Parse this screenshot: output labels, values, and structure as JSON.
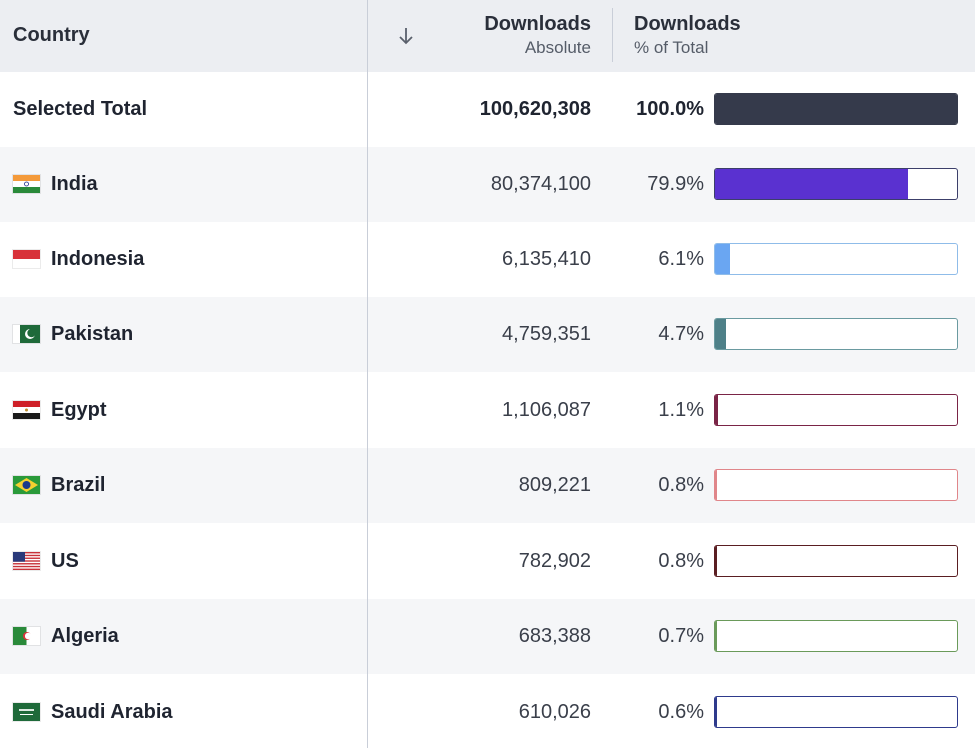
{
  "header": {
    "country_label": "Country",
    "sort_icon": "arrow-down-icon",
    "abs_title": "Downloads",
    "abs_sub": "Absolute",
    "pct_title": "Downloads",
    "pct_sub": "% of Total"
  },
  "total": {
    "label": "Selected Total",
    "absolute": "100,620,308",
    "percent": "100.0%",
    "share": 1.0,
    "color": "#353a4b"
  },
  "rows": [
    {
      "country": "India",
      "flag": "india-flag-icon",
      "absolute": "80,374,100",
      "percent": "79.9%",
      "share": 0.799,
      "color": "#5a31d0",
      "border": "#3c3f6a"
    },
    {
      "country": "Indonesia",
      "flag": "indonesia-flag-icon",
      "absolute": "6,135,410",
      "percent": "6.1%",
      "share": 0.061,
      "color": "#6aa6f2",
      "border": "#8fbce9"
    },
    {
      "country": "Pakistan",
      "flag": "pakistan-flag-icon",
      "absolute": "4,759,351",
      "percent": "4.7%",
      "share": 0.047,
      "color": "#4e8088",
      "border": "#6a9aa0"
    },
    {
      "country": "Egypt",
      "flag": "egypt-flag-icon",
      "absolute": "1,106,087",
      "percent": "1.1%",
      "share": 0.011,
      "color": "#7a2446",
      "border": "#7a2446"
    },
    {
      "country": "Brazil",
      "flag": "brazil-flag-icon",
      "absolute": "809,221",
      "percent": "0.8%",
      "share": 0.008,
      "color": "#e0868a",
      "border": "#e0868a"
    },
    {
      "country": "US",
      "flag": "us-flag-icon",
      "absolute": "782,902",
      "percent": "0.8%",
      "share": 0.008,
      "color": "#5a1e22",
      "border": "#5a1e22"
    },
    {
      "country": "Algeria",
      "flag": "algeria-flag-icon",
      "absolute": "683,388",
      "percent": "0.7%",
      "share": 0.007,
      "color": "#6a9a5a",
      "border": "#6a9a5a"
    },
    {
      "country": "Saudi Arabia",
      "flag": "saudi-arabia-flag-icon",
      "absolute": "610,026",
      "percent": "0.6%",
      "share": 0.006,
      "color": "#2e3a8c",
      "border": "#2e3a8c"
    }
  ]
}
